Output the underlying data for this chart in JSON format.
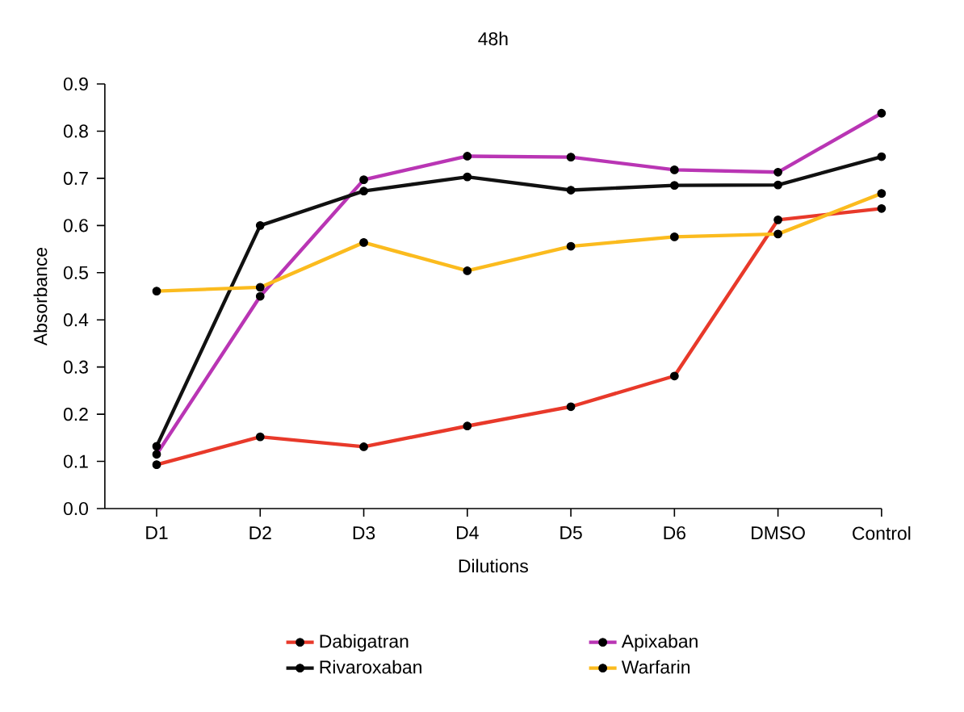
{
  "chart_data": {
    "type": "line",
    "title": "48h",
    "xlabel": "Dilutions",
    "ylabel": "Absorbance",
    "categories": [
      "D1",
      "D2",
      "D3",
      "D4",
      "D5",
      "D6",
      "DMSO",
      "Control"
    ],
    "series": [
      {
        "name": "Dabigatran",
        "color": "#e8392a",
        "values": [
          0.093,
          0.152,
          0.131,
          0.175,
          0.216,
          0.281,
          0.612,
          0.636
        ]
      },
      {
        "name": "Apixaban",
        "color": "#b935b4",
        "values": [
          0.115,
          0.45,
          0.697,
          0.747,
          0.745,
          0.718,
          0.713,
          0.838
        ]
      },
      {
        "name": "Rivaroxaban",
        "color": "#111111",
        "values": [
          0.132,
          0.6,
          0.673,
          0.703,
          0.675,
          0.685,
          0.686,
          0.746
        ]
      },
      {
        "name": "Warfarin",
        "color": "#fbbb1e",
        "values": [
          0.461,
          0.469,
          0.564,
          0.504,
          0.556,
          0.576,
          0.582,
          0.668
        ]
      }
    ],
    "ylim": [
      0,
      0.9
    ],
    "yticks": [
      {
        "value": 0,
        "label": "0.0"
      },
      {
        "value": 0.1,
        "label": "0.1"
      },
      {
        "value": 0.2,
        "label": "0.2"
      },
      {
        "value": 0.3,
        "label": "0.3"
      },
      {
        "value": 0.4,
        "label": "0.4"
      },
      {
        "value": 0.5,
        "label": "0.5"
      },
      {
        "value": 0.6,
        "label": "0.6"
      },
      {
        "value": 0.7,
        "label": "0.7"
      },
      {
        "value": 0.8,
        "label": "0.8"
      },
      {
        "value": 0.9,
        "label": "0.9"
      }
    ],
    "grid": false,
    "legend": "bottom",
    "marker": "circle",
    "line_style": "solid"
  }
}
